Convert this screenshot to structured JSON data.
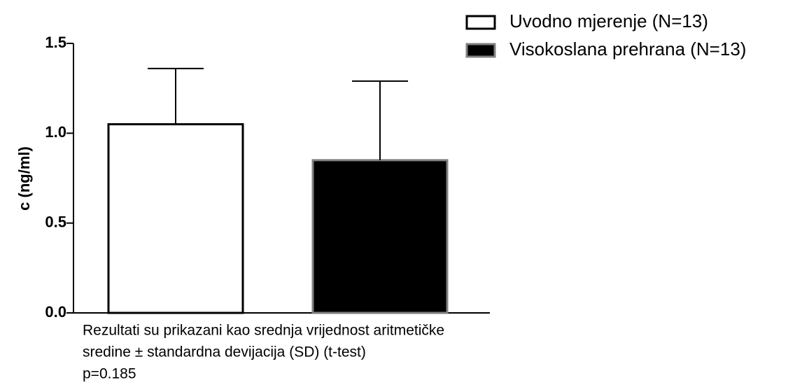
{
  "chart_data": {
    "type": "bar",
    "ylabel": "c (ng/ml)",
    "series": [
      {
        "name": "Uvodno mjerenje (N=13)",
        "color": "#ffffff",
        "edgecolor": "#000000",
        "values": [
          1.05
        ],
        "errors": [
          0.31
        ]
      },
      {
        "name": "Visokoslana prehrana (N=13)",
        "color": "#000000",
        "edgecolor": "#808080",
        "values": [
          0.85
        ],
        "errors": [
          0.44
        ]
      }
    ],
    "ylim": [
      0,
      1.5
    ],
    "yticks": [
      {
        "value": 0,
        "label": "0.0"
      },
      0.5,
      {
        "value": 1,
        "label": "1.0"
      },
      1.5
    ],
    "legend": "upper right",
    "notes": [
      "Rezultati su prikazani kao srednja vrijednost aritmetičke",
      "sredine ± standardna devijacija (SD) (t-test)",
      "p=0.185"
    ]
  }
}
